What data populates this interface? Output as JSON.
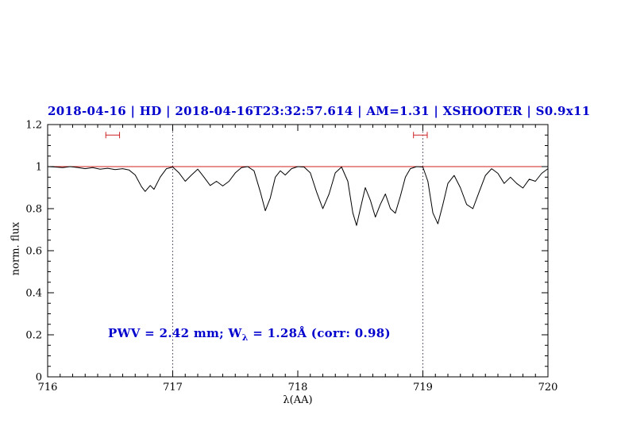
{
  "colors": {
    "title": "#0000cd",
    "annotation": "#0000cd",
    "continuum": "#cc2222",
    "marker": "#cc2222",
    "spectrum": "#000000",
    "vline": "#333355",
    "axis": "#000000",
    "background": "#ffffff"
  },
  "chart_data": {
    "type": "line",
    "title": "2018-04-16 | HD | 2018-04-16T23:32:57.614 | AM=1.31 | XSHOOTER | S0.9x11",
    "xlabel": "λ(AA)",
    "ylabel": "norm. flux",
    "xlim": [
      716,
      720
    ],
    "ylim": [
      0,
      1.2
    ],
    "grid": false,
    "x_ticks": {
      "values": [
        716,
        717,
        718,
        719,
        720
      ],
      "labels": [
        "716",
        "717",
        "718",
        "719",
        "720"
      ],
      "minor_step": 0.1
    },
    "y_ticks": {
      "values": [
        0,
        0.2,
        0.4,
        0.6,
        0.8,
        1,
        1.2
      ],
      "labels": [
        "0",
        "0.2",
        "0.4",
        "0.6",
        "0.8",
        "1",
        "1.2"
      ],
      "minor_step": 0.05
    },
    "annotation": {
      "prefix": "PWV = 2.42 mm; W",
      "sub": "λ",
      "suffix": " = 1.28Å (corr: 0.98)"
    },
    "continuum_line_y": 1.0,
    "fit_window_lines_x": [
      717,
      719
    ],
    "range_markers": [
      {
        "x_center": 716.52,
        "half_width": 0.055,
        "y": 1.15
      },
      {
        "x_center": 718.98,
        "half_width": 0.055,
        "y": 1.15
      }
    ],
    "series": [
      {
        "name": "observed spectrum",
        "points": [
          [
            716.0,
            1.0
          ],
          [
            716.06,
            0.998
          ],
          [
            716.12,
            0.995
          ],
          [
            716.18,
            1.0
          ],
          [
            716.24,
            0.996
          ],
          [
            716.3,
            0.99
          ],
          [
            716.36,
            0.995
          ],
          [
            716.42,
            0.988
          ],
          [
            716.48,
            0.992
          ],
          [
            716.54,
            0.986
          ],
          [
            716.6,
            0.99
          ],
          [
            716.65,
            0.984
          ],
          [
            716.7,
            0.96
          ],
          [
            716.75,
            0.905
          ],
          [
            716.78,
            0.882
          ],
          [
            716.82,
            0.91
          ],
          [
            716.85,
            0.892
          ],
          [
            716.9,
            0.95
          ],
          [
            716.95,
            0.99
          ],
          [
            717.0,
            0.998
          ],
          [
            717.05,
            0.97
          ],
          [
            717.1,
            0.93
          ],
          [
            717.15,
            0.96
          ],
          [
            717.2,
            0.988
          ],
          [
            717.25,
            0.95
          ],
          [
            717.3,
            0.91
          ],
          [
            717.35,
            0.93
          ],
          [
            717.4,
            0.908
          ],
          [
            717.45,
            0.93
          ],
          [
            717.5,
            0.97
          ],
          [
            717.55,
            0.995
          ],
          [
            717.6,
            1.0
          ],
          [
            717.65,
            0.98
          ],
          [
            717.7,
            0.88
          ],
          [
            717.74,
            0.79
          ],
          [
            717.78,
            0.85
          ],
          [
            717.82,
            0.95
          ],
          [
            717.86,
            0.98
          ],
          [
            717.9,
            0.96
          ],
          [
            717.95,
            0.99
          ],
          [
            718.0,
            1.0
          ],
          [
            718.05,
            0.998
          ],
          [
            718.1,
            0.97
          ],
          [
            718.15,
            0.88
          ],
          [
            718.2,
            0.8
          ],
          [
            718.25,
            0.87
          ],
          [
            718.3,
            0.97
          ],
          [
            718.35,
            0.998
          ],
          [
            718.4,
            0.93
          ],
          [
            718.44,
            0.78
          ],
          [
            718.47,
            0.72
          ],
          [
            718.5,
            0.8
          ],
          [
            718.54,
            0.9
          ],
          [
            718.58,
            0.84
          ],
          [
            718.62,
            0.76
          ],
          [
            718.66,
            0.82
          ],
          [
            718.7,
            0.87
          ],
          [
            718.74,
            0.8
          ],
          [
            718.78,
            0.778
          ],
          [
            718.82,
            0.86
          ],
          [
            718.86,
            0.95
          ],
          [
            718.9,
            0.99
          ],
          [
            718.95,
            1.0
          ],
          [
            719.0,
            0.998
          ],
          [
            719.04,
            0.93
          ],
          [
            719.08,
            0.78
          ],
          [
            719.12,
            0.728
          ],
          [
            719.16,
            0.82
          ],
          [
            719.2,
            0.92
          ],
          [
            719.25,
            0.958
          ],
          [
            719.3,
            0.9
          ],
          [
            719.35,
            0.82
          ],
          [
            719.4,
            0.8
          ],
          [
            719.45,
            0.88
          ],
          [
            719.5,
            0.958
          ],
          [
            719.55,
            0.99
          ],
          [
            719.6,
            0.968
          ],
          [
            719.65,
            0.92
          ],
          [
            719.7,
            0.95
          ],
          [
            719.75,
            0.92
          ],
          [
            719.8,
            0.898
          ],
          [
            719.85,
            0.94
          ],
          [
            719.9,
            0.93
          ],
          [
            719.95,
            0.968
          ],
          [
            720.0,
            0.99
          ]
        ]
      }
    ]
  }
}
